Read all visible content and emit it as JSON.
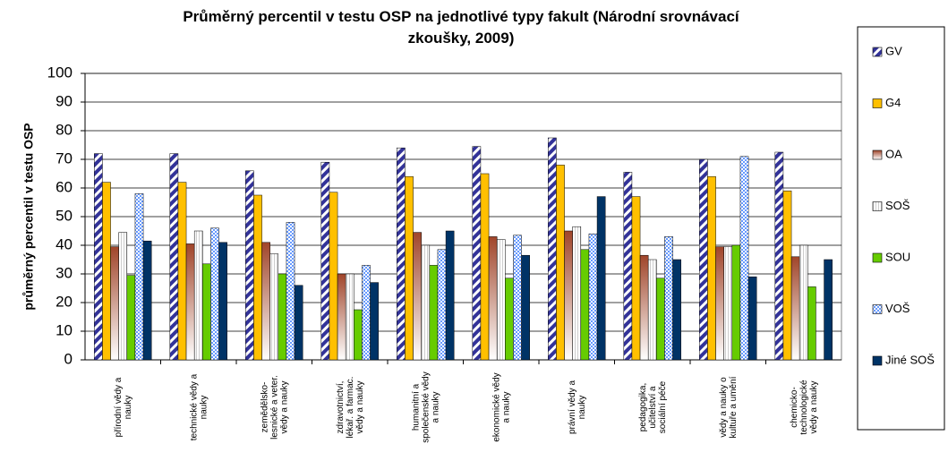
{
  "chart_data": {
    "type": "bar",
    "title": "Průměrný percentil v testu OSP na jednotlivé typy fakult (Národní srovnávací\nzkoušky, 2009)",
    "y_label": "průměrný percentil v testu OSP",
    "categories": [
      "přírodní vědy a\nnauky",
      "technické vědy a\nnauky",
      "zemědělsko-\nlesnické a veter.\nvědy a nauky",
      "zdravotnictví,\nlékař. a farmac.\nvědy a nauky",
      "humanitní a\nspolečenské vědy\na nauky",
      "ekonomické vědy\na nauky",
      "právní vědy a\nnauky",
      "pedagogika,\nučitelství a\nsociální péče",
      "vědy a nauky o\nkultuře a umění",
      "chemicko-\ntechnologické\nvědy a nauky"
    ],
    "series": [
      {
        "name": "GV",
        "color": "#333399",
        "values": [
          72,
          72,
          66,
          69,
          74,
          74.5,
          77.5,
          65.5,
          70,
          72.5
        ]
      },
      {
        "name": "G4",
        "color": "#FFC000",
        "values": [
          62,
          62,
          57.5,
          58.5,
          64,
          65,
          68,
          57,
          64,
          59
        ]
      },
      {
        "name": "OA",
        "color": "#A0452A",
        "values": [
          39.5,
          40.5,
          41,
          30,
          44.5,
          43,
          45,
          36.5,
          39.5,
          36
        ]
      },
      {
        "name": "SOŠ",
        "color": "#FFFFFF",
        "values": [
          44.5,
          45,
          37,
          30,
          40,
          42,
          46.5,
          35,
          39.5,
          40
        ]
      },
      {
        "name": "SOU",
        "color": "#66CC00",
        "values": [
          29.5,
          33.5,
          30,
          17.5,
          33,
          28.5,
          38.5,
          28.5,
          40,
          25.5
        ]
      },
      {
        "name": "VOŠ",
        "color": "#6699FF",
        "values": [
          58,
          46,
          48,
          33,
          38.5,
          43.5,
          44,
          43,
          71,
          null
        ]
      },
      {
        "name": "Jiné SOŠ",
        "color": "#003366",
        "values": [
          41.5,
          41,
          26,
          27,
          45,
          36.5,
          57,
          35,
          29,
          35
        ]
      }
    ],
    "ylim": [
      0,
      100
    ],
    "yticks": [
      0,
      10,
      20,
      30,
      40,
      50,
      60,
      70,
      80,
      90,
      100
    ],
    "grid": true,
    "legend": "right"
  }
}
